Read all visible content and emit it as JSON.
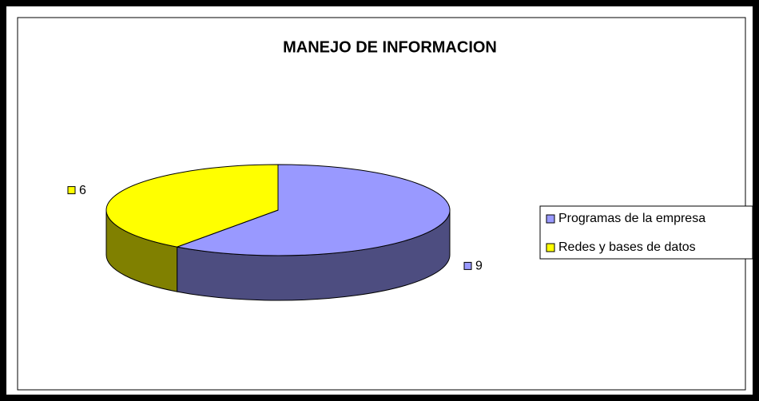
{
  "chart_data": {
    "type": "pie",
    "title": "MANEJO DE INFORMACION",
    "categories": [
      "Programas de la empresa",
      "Redes y bases de datos"
    ],
    "values": [
      9,
      6
    ],
    "colors": [
      "#9999ff",
      "#ffff00"
    ],
    "side_colors": [
      "#4d4d80",
      "#808000"
    ],
    "legend": "right"
  }
}
